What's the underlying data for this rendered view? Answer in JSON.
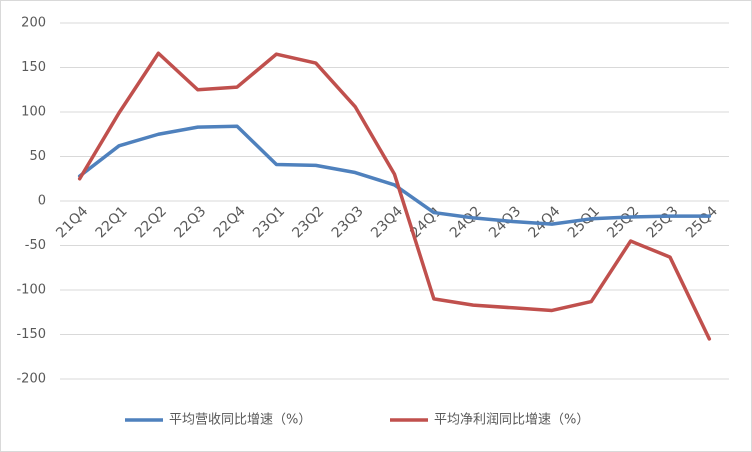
{
  "chart_data": {
    "type": "line",
    "categories": [
      "21Q4",
      "22Q1",
      "22Q2",
      "22Q3",
      "22Q4",
      "23Q1",
      "23Q2",
      "23Q3",
      "23Q4",
      "24Q1",
      "24Q2",
      "24Q3",
      "24Q4",
      "25Q1",
      "25Q2",
      "25Q3",
      "25Q4"
    ],
    "series": [
      {
        "name": "平均营收同比增速（%）",
        "color": "#4f81bd",
        "values": [
          28,
          62,
          75,
          83,
          84,
          41,
          40,
          32,
          18,
          -13,
          -19,
          -23,
          -26,
          -20,
          -18,
          -17,
          -17
        ]
      },
      {
        "name": "平均净利润同比增速（%）",
        "color": "#c0504d",
        "values": [
          25,
          99,
          166,
          125,
          128,
          165,
          155,
          106,
          30,
          -110,
          -117,
          -120,
          -123,
          -113,
          -45,
          -63,
          -155
        ]
      }
    ],
    "ylim": [
      -200,
      200
    ],
    "yticks": [
      -200,
      -150,
      -100,
      -50,
      0,
      50,
      100,
      150,
      200
    ],
    "grid": true,
    "legend": "bottom"
  }
}
